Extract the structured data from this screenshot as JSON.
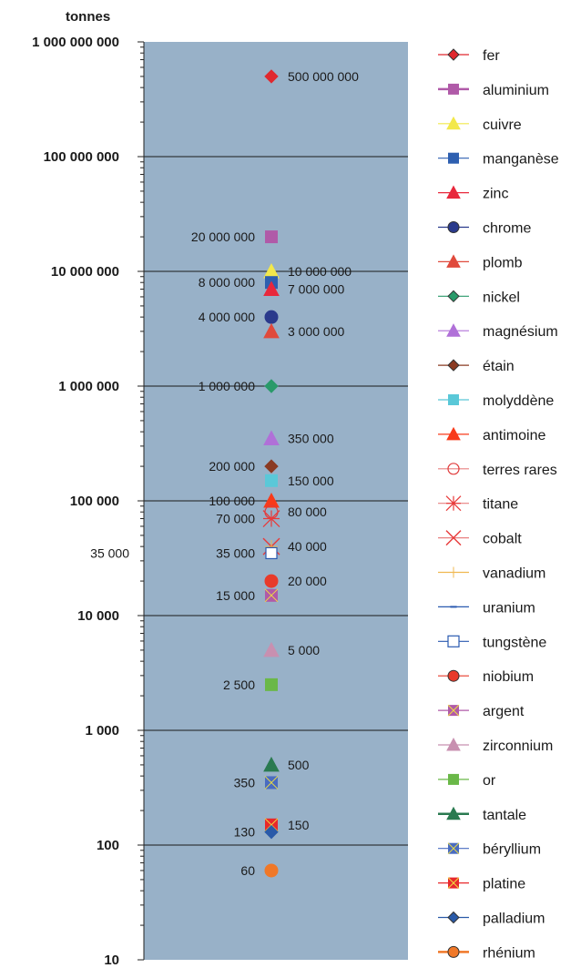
{
  "chart_data": {
    "type": "scatter",
    "title": "",
    "ylabel": "tonnes",
    "xlabel": "",
    "yscale": "log",
    "ylim": [
      10,
      1000000000
    ],
    "grid": true,
    "plot_background": "#98b1c8",
    "legend_position": "right",
    "y_tick_labels": [
      "1 000 000 000",
      "100 000 000",
      "10 000 000",
      "1 000 000",
      "100 000",
      "10 000",
      "1 000",
      "100",
      "10"
    ],
    "series": [
      {
        "name": "fer",
        "value": 500000000,
        "color": "#e0282e",
        "marker": "diamond"
      },
      {
        "name": "aluminium",
        "value": 20000000,
        "color": "#b05aa8",
        "marker": "square"
      },
      {
        "name": "cuivre",
        "value": 10000000,
        "color": "#f2e84a",
        "marker": "triangle"
      },
      {
        "name": "manganèse",
        "value": 8000000,
        "color": "#2e5fb0",
        "marker": "square"
      },
      {
        "name": "zinc",
        "value": 7000000,
        "color": "#e8283c",
        "marker": "triangle"
      },
      {
        "name": "chrome",
        "value": 4000000,
        "color": "#2a3a8c",
        "marker": "circle"
      },
      {
        "name": "plomb",
        "value": 3000000,
        "color": "#e04a3c",
        "marker": "triangle"
      },
      {
        "name": "nickel",
        "value": 1000000,
        "color": "#2a9a6a",
        "marker": "diamond"
      },
      {
        "name": "magnésium",
        "value": 350000,
        "color": "#b070d8",
        "marker": "triangle"
      },
      {
        "name": "étain",
        "value": 200000,
        "color": "#8a3a22",
        "marker": "diamond"
      },
      {
        "name": "molyddène",
        "value": 150000,
        "color": "#5ac8d8",
        "marker": "square"
      },
      {
        "name": "antimoine",
        "value": 100000,
        "color": "#f83a1a",
        "marker": "triangle"
      },
      {
        "name": "terres rares",
        "value": 80000,
        "color": "#e03a3a",
        "marker": "open-circle"
      },
      {
        "name": "titane",
        "value": 70000,
        "color": "#e83a3a",
        "marker": "asterisk"
      },
      {
        "name": "cobalt",
        "value": 40000,
        "color": "#e83a3a",
        "marker": "x"
      },
      {
        "name": "vanadium",
        "value": 40000,
        "color": "#f0b850",
        "marker": "plus"
      },
      {
        "name": "uranium",
        "value": 35000,
        "color": "#2a5ab0",
        "marker": "dash"
      },
      {
        "name": "tungstène",
        "value": 35000,
        "color": "#2a5ab0",
        "marker": "open-square"
      },
      {
        "name": "niobium",
        "value": 20000,
        "color": "#e83a2a",
        "marker": "circle"
      },
      {
        "name": "argent",
        "value": 15000,
        "color": "#b05aa8",
        "marker": "square-x"
      },
      {
        "name": "zirconnium",
        "value": 5000,
        "color": "#c890b0",
        "marker": "triangle"
      },
      {
        "name": "or",
        "value": 2500,
        "color": "#6ab848",
        "marker": "square"
      },
      {
        "name": "tantale",
        "value": 500,
        "color": "#2a7a50",
        "marker": "triangle"
      },
      {
        "name": "béryllium",
        "value": 350,
        "color": "#4a6cc0",
        "marker": "square-x"
      },
      {
        "name": "platine",
        "value": 150,
        "color": "#e8282c",
        "marker": "square-x"
      },
      {
        "name": "palladium",
        "value": 130,
        "color": "#2a5aa8",
        "marker": "diamond"
      },
      {
        "name": "rhénium",
        "value": 60,
        "color": "#f07828",
        "marker": "circle"
      }
    ],
    "data_labels": [
      {
        "text": "500 000 000",
        "value": 500000000,
        "side": "right"
      },
      {
        "text": "20 000 000",
        "value": 20000000,
        "side": "left"
      },
      {
        "text": "10 000 000",
        "value": 10000000,
        "side": "right"
      },
      {
        "text": "8 000 000",
        "value": 8000000,
        "side": "left"
      },
      {
        "text": "7 000 000",
        "value": 7000000,
        "side": "right"
      },
      {
        "text": "4 000 000",
        "value": 4000000,
        "side": "left"
      },
      {
        "text": "3 000 000",
        "value": 3000000,
        "side": "right"
      },
      {
        "text": "1 000 000",
        "value": 1000000,
        "side": "left"
      },
      {
        "text": "350 000",
        "value": 350000,
        "side": "right"
      },
      {
        "text": "200 000",
        "value": 200000,
        "side": "left"
      },
      {
        "text": "150 000",
        "value": 150000,
        "side": "right"
      },
      {
        "text": "100 000",
        "value": 100000,
        "side": "left"
      },
      {
        "text": "80 000",
        "value": 80000,
        "side": "right"
      },
      {
        "text": "70 000",
        "value": 70000,
        "side": "left"
      },
      {
        "text": "40 000",
        "value": 40000,
        "side": "right"
      },
      {
        "text": "35 000",
        "value": 35000,
        "side": "left"
      },
      {
        "text": "35 000",
        "value": 35000,
        "side": "outside-left"
      },
      {
        "text": "20 000",
        "value": 20000,
        "side": "right"
      },
      {
        "text": "15 000",
        "value": 15000,
        "side": "left"
      },
      {
        "text": "5 000",
        "value": 5000,
        "side": "right"
      },
      {
        "text": "2 500",
        "value": 2500,
        "side": "left"
      },
      {
        "text": "500",
        "value": 500,
        "side": "right"
      },
      {
        "text": "350",
        "value": 350,
        "side": "left"
      },
      {
        "text": "150",
        "value": 150,
        "side": "right"
      },
      {
        "text": "130",
        "value": 130,
        "side": "left"
      },
      {
        "text": "60",
        "value": 60,
        "side": "left"
      }
    ]
  }
}
